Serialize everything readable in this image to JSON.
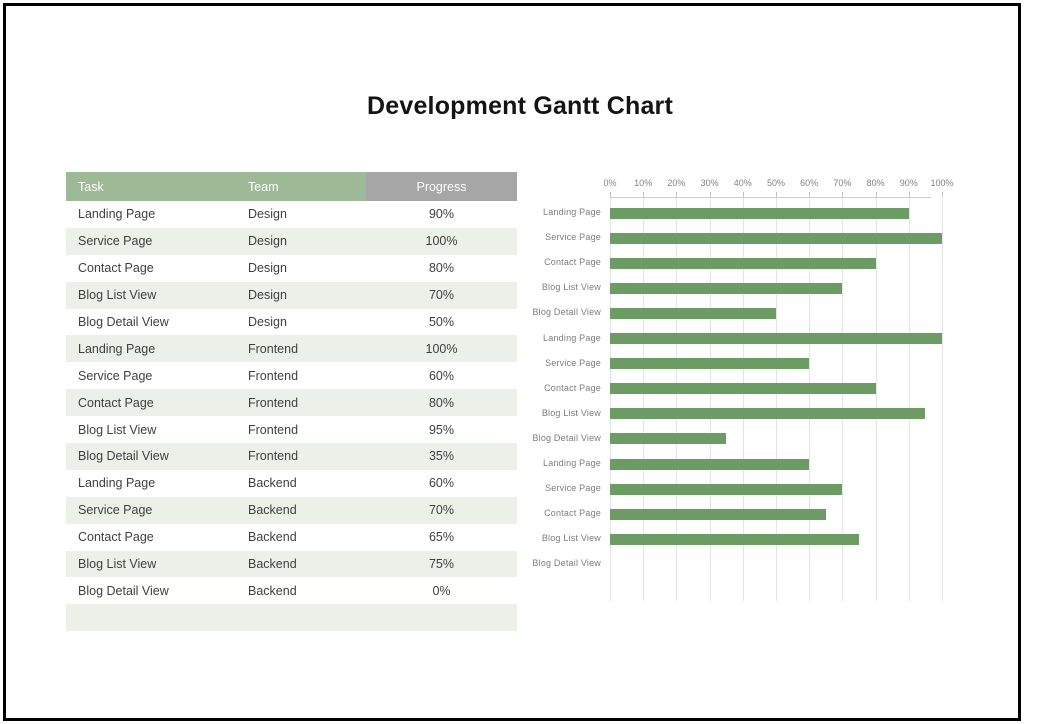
{
  "page": {
    "title": "Development Gantt Chart"
  },
  "table": {
    "headers": [
      "Task",
      "Team",
      "Progress"
    ],
    "rows": [
      [
        "Landing Page",
        "Design",
        "90%"
      ],
      [
        "Service Page",
        "Design",
        "100%"
      ],
      [
        "Contact Page",
        "Design",
        "80%"
      ],
      [
        "Blog List View",
        "Design",
        "70%"
      ],
      [
        "Blog Detail View",
        "Design",
        "50%"
      ],
      [
        "Landing Page",
        "Frontend",
        "100%"
      ],
      [
        "Service Page",
        "Frontend",
        "60%"
      ],
      [
        "Contact Page",
        "Frontend",
        "80%"
      ],
      [
        "Blog List View",
        "Frontend",
        "95%"
      ],
      [
        "Blog Detail View",
        "Frontend",
        "35%"
      ],
      [
        "Landing Page",
        "Backend",
        "60%"
      ],
      [
        "Service Page",
        "Backend",
        "70%"
      ],
      [
        "Contact Page",
        "Backend",
        "65%"
      ],
      [
        "Blog List View",
        "Backend",
        "75%"
      ],
      [
        "Blog Detail View",
        "Backend",
        "0%"
      ]
    ]
  },
  "chart_data": {
    "type": "bar",
    "orientation": "horizontal",
    "title": "",
    "xlabel": "",
    "ylabel": "",
    "axis_position": "top",
    "axis_ticks": [
      "0%",
      "10%",
      "20%",
      "30%",
      "40%",
      "50%",
      "60%",
      "70%",
      "80%",
      "90%",
      "100%"
    ],
    "xlim": [
      0,
      100
    ],
    "gridlines": true,
    "legend": "none",
    "categories": [
      "Landing Page",
      "Service Page",
      "Contact Page",
      "Blog List View",
      "Blog Detail View",
      "Landing Page",
      "Service Page",
      "Contact Page",
      "Blog List View",
      "Blog Detail View",
      "Landing Page",
      "Service Page",
      "Contact Page",
      "Blog List View",
      "Blog Detail View"
    ],
    "series": [
      {
        "name": "Progress",
        "values": [
          90,
          100,
          80,
          70,
          50,
          100,
          60,
          80,
          95,
          35,
          60,
          70,
          65,
          75,
          0
        ]
      }
    ]
  },
  "colors": {
    "bar_green": "#6d9b64",
    "header_green": "#9db995",
    "header_gray": "#a6a6a6",
    "row_tint": "#ebf1e9",
    "grid": "#e3e3e3",
    "chart_text": "#7d7d7d"
  }
}
